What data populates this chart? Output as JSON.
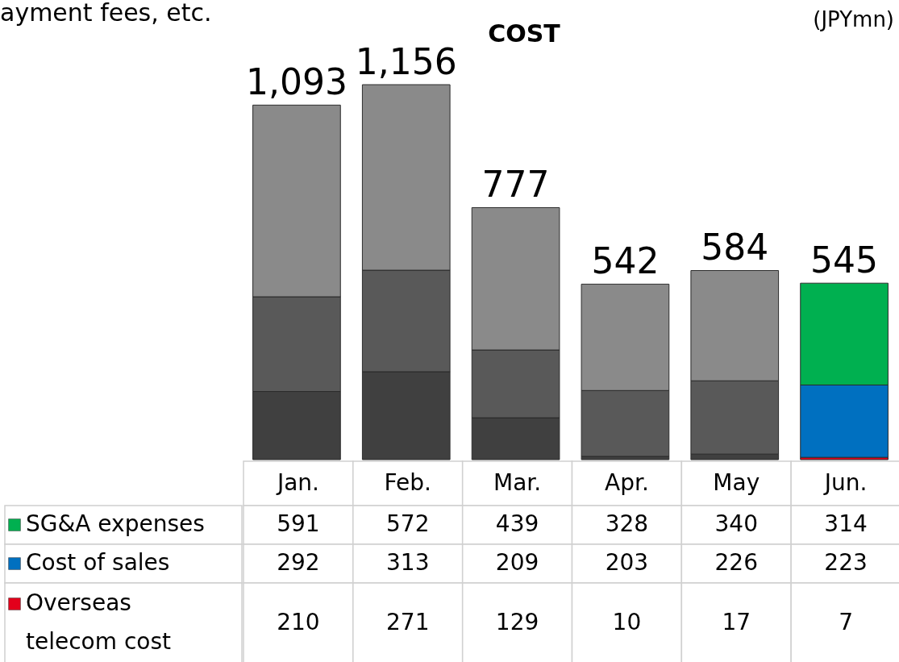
{
  "chart_data": {
    "type": "bar",
    "title": "COST",
    "categories": [
      "Jan.",
      "Feb.",
      "Mar.",
      "Apr.",
      "May",
      "Jun."
    ],
    "stacked": true,
    "data_labels": true,
    "legend": "bottom left",
    "totals": [
      "1,093",
      "1,156",
      "777",
      "542",
      "584",
      "545"
    ],
    "annotations": [
      "(JPYmn)",
      "ayment fees, etc."
    ],
    "series": [
      {
        "name": "Overseas telecom cost",
        "color": "#e3001b",
        "colors": [
          "#404040",
          "#404040",
          "#404040",
          "#404040",
          "#404040",
          "#e3001b"
        ],
        "values": [
          210,
          271,
          129,
          10,
          17,
          7
        ]
      },
      {
        "name": "Cost of  sales",
        "color": "#0070c0",
        "colors": [
          "#595959",
          "#595959",
          "#595959",
          "#595959",
          "#595959",
          "#0070c0"
        ],
        "values": [
          292,
          313,
          209,
          203,
          226,
          223
        ]
      },
      {
        "name": "SG&A expenses",
        "color": "#00b050",
        "colors": [
          "#8a8a8a",
          "#8a8a8a",
          "#8a8a8a",
          "#8a8a8a",
          "#8a8a8a",
          "#00b050"
        ],
        "values": [
          591,
          572,
          439,
          328,
          340,
          314
        ]
      }
    ]
  }
}
